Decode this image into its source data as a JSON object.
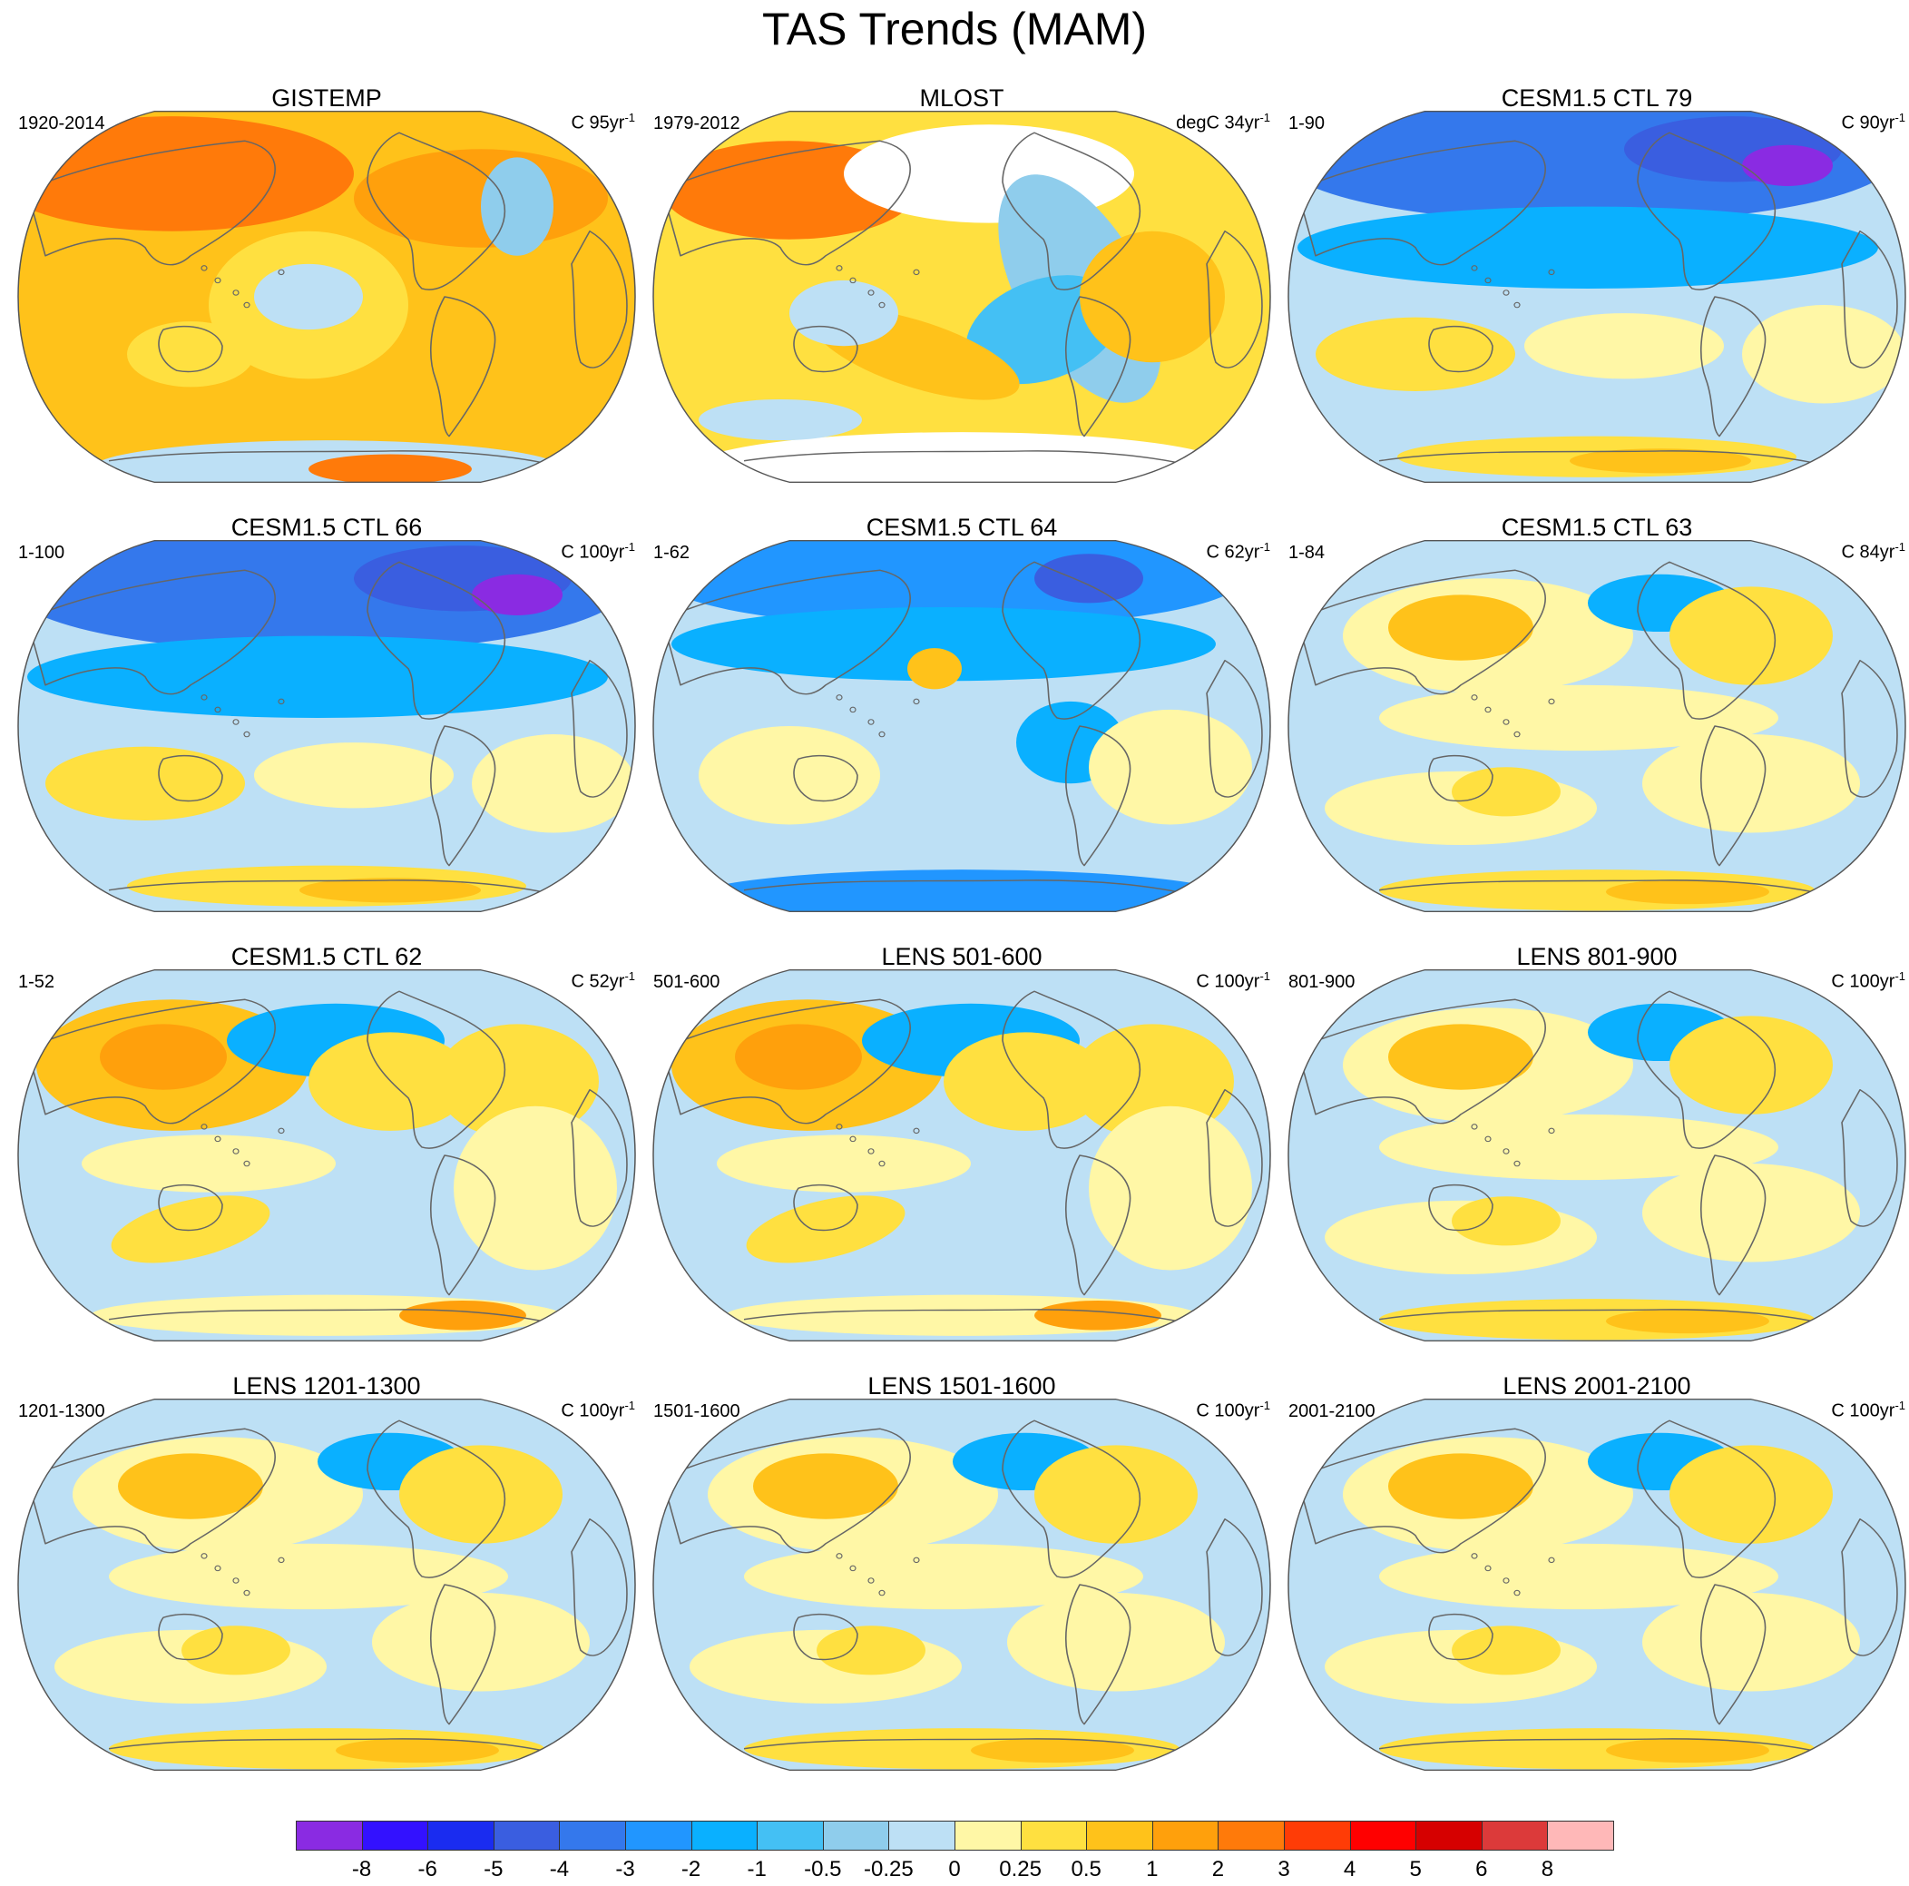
{
  "title": "TAS Trends (MAM)",
  "colors": {
    "ocean_outline": "#555555",
    "land_outline": "#666666"
  },
  "panels": [
    {
      "title": "GISTEMP",
      "period": "1920-2014",
      "units": "C 95yr",
      "units_sup": "-1",
      "tone": "warm-strong"
    },
    {
      "title": "MLOST",
      "period": "1979-2012",
      "units": "degC 34yr",
      "units_sup": "-1",
      "tone": "mlost"
    },
    {
      "title": "CESM1.5 CTL 79",
      "period": "1-90",
      "units": "C 90yr",
      "units_sup": "-1",
      "tone": "cool-north"
    },
    {
      "title": "CESM1.5 CTL 66",
      "period": "1-100",
      "units": "C 100yr",
      "units_sup": "-1",
      "tone": "cool-north"
    },
    {
      "title": "CESM1.5 CTL 64",
      "period": "1-62",
      "units": "C 62yr",
      "units_sup": "-1",
      "tone": "cool-mid"
    },
    {
      "title": "CESM1.5 CTL 63",
      "period": "1-84",
      "units": "C 84yr",
      "units_sup": "-1",
      "tone": "mixed"
    },
    {
      "title": "CESM1.5 CTL 62",
      "period": "1-52",
      "units": "C 52yr",
      "units_sup": "-1",
      "tone": "mixed-warm"
    },
    {
      "title": "LENS 501-600",
      "period": "501-600",
      "units": "C 100yr",
      "units_sup": "-1",
      "tone": "mixed-warm"
    },
    {
      "title": "LENS 801-900",
      "period": "801-900",
      "units": "C 100yr",
      "units_sup": "-1",
      "tone": "mixed"
    },
    {
      "title": "LENS 1201-1300",
      "period": "1201-1300",
      "units": "C 100yr",
      "units_sup": "-1",
      "tone": "mixed"
    },
    {
      "title": "LENS 1501-1600",
      "period": "1501-1600",
      "units": "C 100yr",
      "units_sup": "-1",
      "tone": "mixed"
    },
    {
      "title": "LENS 2001-2100",
      "period": "2001-2100",
      "units": "C 100yr",
      "units_sup": "-1",
      "tone": "mixed"
    }
  ],
  "colorbar": {
    "colors": [
      "#8a2be2",
      "#3311ff",
      "#1a2cf0",
      "#3a5ee0",
      "#3478ec",
      "#2196ff",
      "#0ab0ff",
      "#44c0f4",
      "#8fcdec",
      "#bde0f5",
      "#fff7a6",
      "#ffe040",
      "#ffc21a",
      "#ffa00c",
      "#ff7a0a",
      "#ff3c06",
      "#ff0000",
      "#d60000",
      "#dc3a3a",
      "#ffb8b8"
    ],
    "labels": [
      "-8",
      "-6",
      "-5",
      "-4",
      "-3",
      "-2",
      "-1",
      "-0.5",
      "-0.25",
      "0",
      "0.25",
      "0.5",
      "1",
      "2",
      "3",
      "4",
      "5",
      "6",
      "8"
    ]
  }
}
